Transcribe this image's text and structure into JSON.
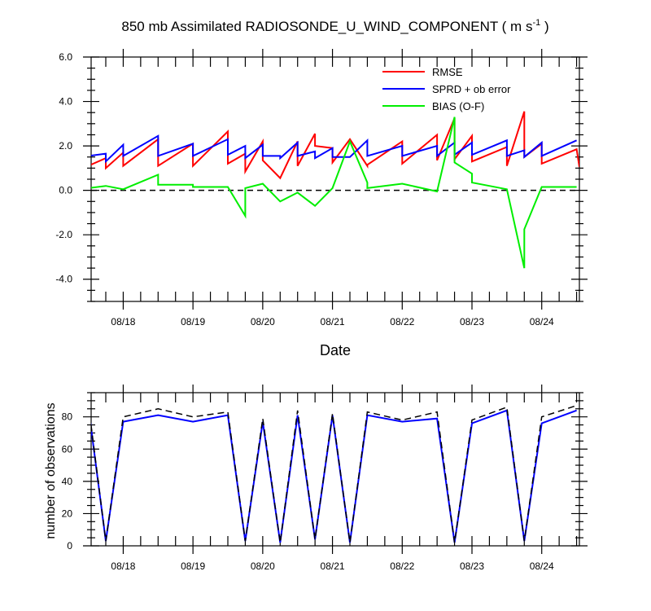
{
  "title_main": "850 mb Assimilated RADIOSONDE_U_WIND_COMPONENT ( m s",
  "title_sup": "-1",
  "title_end": " )",
  "chart_data": [
    {
      "type": "line",
      "xlabel": "Date",
      "ylabel": "",
      "xlim": [
        17.54,
        24.54
      ],
      "ylim": [
        -5,
        6
      ],
      "ytick_values": [
        -4,
        -2,
        0,
        2,
        4,
        6
      ],
      "ytick_labels": [
        "-4.0",
        "-2.0",
        "0.0",
        "2.0",
        "4.0",
        "6.0"
      ],
      "xtick_values": [
        18,
        19,
        20,
        21,
        22,
        23,
        24
      ],
      "xtick_labels": [
        "08/18",
        "08/19",
        "08/20",
        "08/21",
        "08/22",
        "08/23",
        "08/24"
      ],
      "zero_line": true,
      "legend_position": "top-right",
      "series": [
        {
          "name": "RMSE",
          "color": "#ff0000",
          "x": [
            17.5,
            17.75,
            17.75,
            18.0,
            18.0,
            18.5,
            18.5,
            19.0,
            19.0,
            19.5,
            19.5,
            19.75,
            19.75,
            20.0,
            20.0,
            20.25,
            20.5,
            20.5,
            20.75,
            20.75,
            21.0,
            21.0,
            21.25,
            21.5,
            21.5,
            22.0,
            22.0,
            22.5,
            22.5,
            22.75,
            22.75,
            23.0,
            23.0,
            23.5,
            23.5,
            23.75,
            23.75,
            24.0,
            24.0,
            24.5,
            24.54
          ],
          "y": [
            1.1,
            1.45,
            1.0,
            1.7,
            1.1,
            2.3,
            1.1,
            2.1,
            1.1,
            2.65,
            1.2,
            1.65,
            0.85,
            2.2,
            1.35,
            0.55,
            2.2,
            1.1,
            2.55,
            2.0,
            1.9,
            1.25,
            2.3,
            1.1,
            1.15,
            2.2,
            1.2,
            2.5,
            1.35,
            3.25,
            1.4,
            2.45,
            1.3,
            1.95,
            1.1,
            3.55,
            1.5,
            2.1,
            1.2,
            1.85,
            1.05
          ]
        },
        {
          "name": "SPRD + ob error",
          "color": "#0000ff",
          "x": [
            17.5,
            17.75,
            17.75,
            18.0,
            18.0,
            18.5,
            18.5,
            19.0,
            19.0,
            19.5,
            19.5,
            19.75,
            19.75,
            20.0,
            20.0,
            20.25,
            20.25,
            20.5,
            20.5,
            20.75,
            20.75,
            21.0,
            21.0,
            21.25,
            21.5,
            21.5,
            22.0,
            22.0,
            22.5,
            22.5,
            22.75,
            22.75,
            23.0,
            23.0,
            23.5,
            23.5,
            23.75,
            23.75,
            24.0,
            24.0,
            24.5
          ],
          "y": [
            1.55,
            1.65,
            1.3,
            2.05,
            1.55,
            2.45,
            1.55,
            2.1,
            1.55,
            2.3,
            1.6,
            2.0,
            1.45,
            2.05,
            1.55,
            1.55,
            1.45,
            2.15,
            1.55,
            1.75,
            1.45,
            1.9,
            1.5,
            1.5,
            2.25,
            1.55,
            2.0,
            1.55,
            2.0,
            1.55,
            2.15,
            1.6,
            2.15,
            1.6,
            2.25,
            1.55,
            1.8,
            1.5,
            2.15,
            1.55,
            2.25
          ]
        },
        {
          "name": "BIAS (O-F)",
          "color": "#00ee00",
          "x": [
            17.5,
            17.75,
            18.0,
            18.5,
            18.5,
            19.0,
            19.0,
            19.5,
            19.75,
            19.75,
            20.0,
            20.25,
            20.5,
            20.75,
            21.0,
            21.25,
            21.5,
            21.5,
            22.0,
            22.5,
            22.75,
            22.75,
            23.0,
            23.0,
            23.5,
            23.75,
            23.75,
            24.0,
            24.5
          ],
          "y": [
            0.1,
            0.2,
            0.05,
            0.7,
            0.25,
            0.25,
            0.15,
            0.15,
            -1.15,
            0.1,
            0.3,
            -0.5,
            -0.1,
            -0.7,
            0.1,
            2.2,
            0.35,
            0.1,
            0.3,
            -0.05,
            3.3,
            1.25,
            0.75,
            0.35,
            0.05,
            -3.5,
            -1.75,
            0.15,
            0.15
          ]
        }
      ]
    },
    {
      "type": "line",
      "xlabel": "",
      "ylabel": "number of observations",
      "xlim": [
        17.54,
        24.54
      ],
      "ylim": [
        0,
        95
      ],
      "ytick_values": [
        0,
        20,
        40,
        60,
        80
      ],
      "ytick_labels": [
        "0",
        "20",
        "40",
        "60",
        "80"
      ],
      "xtick_values": [
        18,
        19,
        20,
        21,
        22,
        23,
        24
      ],
      "xtick_labels": [
        "08/18",
        "08/19",
        "08/20",
        "08/21",
        "08/22",
        "08/23",
        "08/24"
      ],
      "series": [
        {
          "color": "#0000ff",
          "dash": "solid",
          "x": [
            17.5,
            17.75,
            18.0,
            18.5,
            19.0,
            19.5,
            19.75,
            20.0,
            20.25,
            20.5,
            20.75,
            21.0,
            21.25,
            21.5,
            22.0,
            22.5,
            22.75,
            23.0,
            23.5,
            23.75,
            24.0,
            24.5
          ],
          "y": [
            86,
            3,
            77,
            81,
            77,
            81,
            3,
            77,
            2,
            81,
            4,
            81,
            2,
            81,
            77,
            79,
            2,
            76,
            84,
            3,
            76,
            84
          ]
        },
        {
          "color": "#000000",
          "dash": "dashed",
          "x": [
            17.5,
            17.75,
            18.0,
            18.5,
            19.0,
            19.5,
            19.75,
            20.0,
            20.25,
            20.5,
            20.75,
            21.0,
            21.25,
            21.5,
            22.0,
            22.5,
            22.75,
            23.0,
            23.5,
            23.75,
            24.0,
            24.5
          ],
          "y": [
            88,
            3,
            80,
            85,
            80,
            83,
            3,
            79,
            2,
            84,
            4,
            82,
            2,
            83,
            78,
            83,
            2,
            78,
            86,
            3,
            80,
            87
          ]
        }
      ]
    }
  ]
}
